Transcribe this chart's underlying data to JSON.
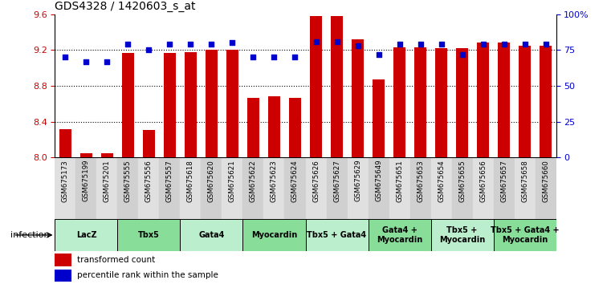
{
  "title": "GDS4328 / 1420603_s_at",
  "samples": [
    "GSM675173",
    "GSM675199",
    "GSM675201",
    "GSM675555",
    "GSM675556",
    "GSM675557",
    "GSM675618",
    "GSM675620",
    "GSM675621",
    "GSM675622",
    "GSM675623",
    "GSM675624",
    "GSM675626",
    "GSM675627",
    "GSM675629",
    "GSM675649",
    "GSM675651",
    "GSM675653",
    "GSM675654",
    "GSM675655",
    "GSM675656",
    "GSM675657",
    "GSM675658",
    "GSM675660"
  ],
  "bar_values": [
    8.32,
    8.05,
    8.05,
    9.17,
    8.31,
    9.17,
    9.18,
    9.2,
    9.2,
    8.67,
    8.68,
    8.67,
    9.58,
    9.58,
    9.32,
    8.87,
    9.23,
    9.23,
    9.22,
    9.22,
    9.28,
    9.28,
    9.25,
    9.25
  ],
  "dot_values": [
    70,
    67,
    67,
    79,
    75,
    79,
    79,
    79,
    80,
    70,
    70,
    70,
    81,
    81,
    78,
    72,
    79,
    79,
    79,
    72,
    79,
    79,
    79,
    79
  ],
  "bar_color": "#cc0000",
  "dot_color": "#0000cc",
  "ylim_left": [
    8.0,
    9.6
  ],
  "ylim_right": [
    0,
    100
  ],
  "yticks_left": [
    8.0,
    8.4,
    8.8,
    9.2,
    9.6
  ],
  "yticks_right": [
    0,
    25,
    50,
    75,
    100
  ],
  "ytick_labels_right": [
    "0",
    "25",
    "50",
    "75",
    "100%"
  ],
  "groups": [
    {
      "label": "LacZ",
      "start": 0,
      "end": 3,
      "color": "#bbeecc"
    },
    {
      "label": "Tbx5",
      "start": 3,
      "end": 6,
      "color": "#88dd99"
    },
    {
      "label": "Gata4",
      "start": 6,
      "end": 9,
      "color": "#bbeecc"
    },
    {
      "label": "Myocardin",
      "start": 9,
      "end": 12,
      "color": "#88dd99"
    },
    {
      "label": "Tbx5 + Gata4",
      "start": 12,
      "end": 15,
      "color": "#bbeecc"
    },
    {
      "label": "Gata4 +\nMyocardin",
      "start": 15,
      "end": 18,
      "color": "#88dd99"
    },
    {
      "label": "Tbx5 +\nMyocardin",
      "start": 18,
      "end": 21,
      "color": "#bbeecc"
    },
    {
      "label": "Tbx5 + Gata4 +\nMyocardin",
      "start": 21,
      "end": 24,
      "color": "#88dd99"
    }
  ],
  "infection_label": "infection",
  "legend_bar_label": "transformed count",
  "legend_dot_label": "percentile rank within the sample",
  "bg_color": "#ffffff",
  "bar_bottom": 8.0,
  "grid_dotted_lines": [
    8.4,
    8.8,
    9.2
  ]
}
